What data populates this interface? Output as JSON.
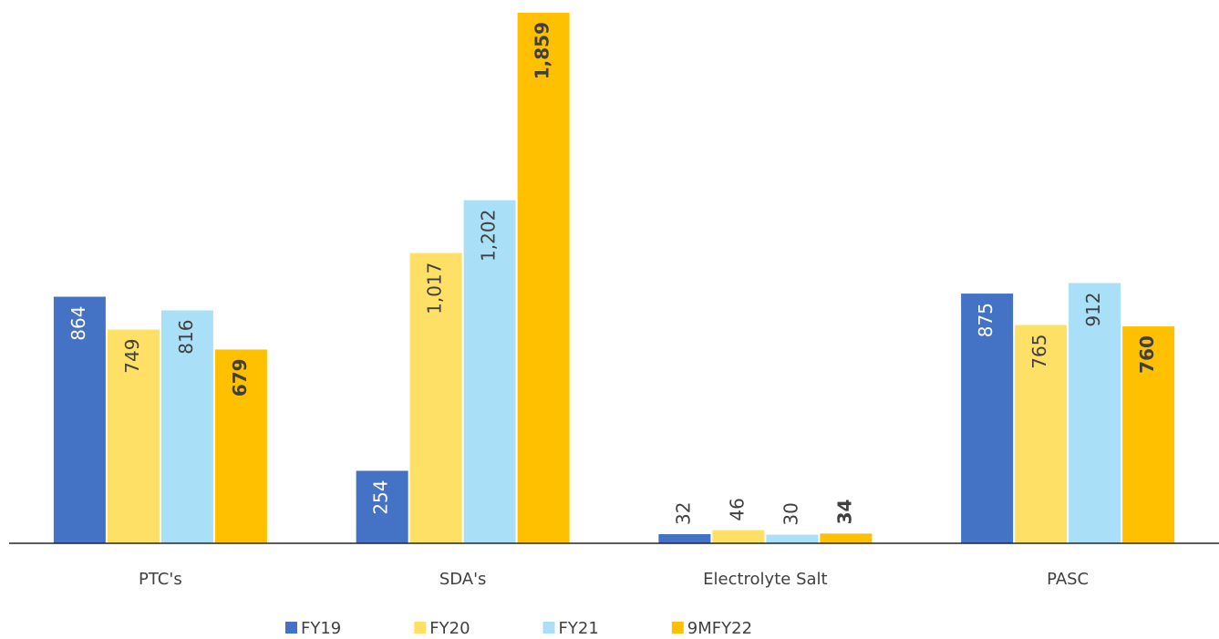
{
  "chart_data": {
    "type": "bar",
    "categories": [
      "PTC's",
      "SDA's",
      "Electrolyte Salt",
      "PASC"
    ],
    "series": [
      {
        "name": "FY19",
        "color": "#4472c4",
        "label_color": "#ffffff",
        "values": [
          864,
          254,
          32,
          875
        ]
      },
      {
        "name": "FY20",
        "color": "#ffe066",
        "label_color": "#404040",
        "values": [
          749,
          1017,
          46,
          765
        ],
        "value_labels": [
          "749",
          "1,017",
          "46",
          "765"
        ]
      },
      {
        "name": "FY21",
        "color": "#a9dff7",
        "label_color": "#404040",
        "values": [
          816,
          1202,
          30,
          912
        ],
        "value_labels": [
          "816",
          "1,202",
          "30",
          "912"
        ]
      },
      {
        "name": "9MFY22",
        "color": "#ffc000",
        "label_color": "#404040",
        "label_bold": true,
        "values": [
          679,
          1859,
          34,
          760
        ],
        "value_labels": [
          "679",
          "1,859",
          "34",
          "760"
        ]
      }
    ],
    "ylim": [
      0,
      1859
    ],
    "legend": "bottom"
  }
}
